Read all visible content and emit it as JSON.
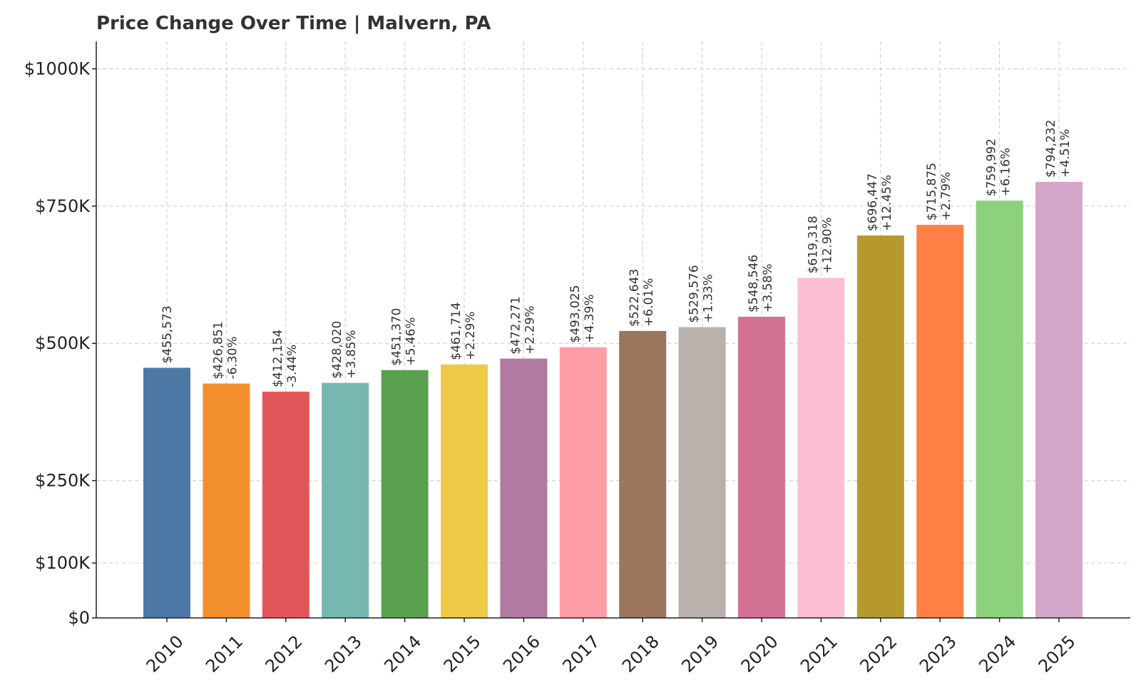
{
  "chart_data": {
    "type": "bar",
    "title": "Price Change Over Time | Malvern, PA",
    "xlabel": "",
    "ylabel": "",
    "categories": [
      "2010",
      "2011",
      "2012",
      "2013",
      "2014",
      "2015",
      "2016",
      "2017",
      "2018",
      "2019",
      "2020",
      "2021",
      "2022",
      "2023",
      "2024",
      "2025"
    ],
    "values": [
      455573,
      426851,
      412154,
      428020,
      451370,
      461714,
      472271,
      493025,
      522643,
      529576,
      548546,
      619318,
      696447,
      715875,
      759992,
      794232
    ],
    "value_labels": [
      "$455,573",
      "$426,851",
      "$412,154",
      "$428,020",
      "$451,370",
      "$461,714",
      "$472,271",
      "$493,025",
      "$522,643",
      "$529,576",
      "$548,546",
      "$619,318",
      "$696,447",
      "$715,875",
      "$759,992",
      "$794,232"
    ],
    "change_labels": [
      "",
      "-6.30%",
      "-3.44%",
      "+3.85%",
      "+5.46%",
      "+2.29%",
      "+2.29%",
      "+4.39%",
      "+6.01%",
      "+1.33%",
      "+3.58%",
      "+12.90%",
      "+12.45%",
      "+2.79%",
      "+6.16%",
      "+4.51%"
    ],
    "colors": [
      "#4e79a7",
      "#f28e2b",
      "#e15759",
      "#76b7b2",
      "#59a14f",
      "#edc948",
      "#b07aa1",
      "#ff9da7",
      "#9c755f",
      "#bab0ac",
      "#d37295",
      "#fabfd2",
      "#b6992d",
      "#ff7f45",
      "#8cd17d",
      "#d4a6c8"
    ],
    "yticks": [
      0,
      100000,
      250000,
      500000,
      750000,
      1000000
    ],
    "ytick_labels": [
      "$0",
      "$100K",
      "$250K",
      "$500K",
      "$750K",
      "$1000K"
    ],
    "ylim": [
      0,
      1050000
    ],
    "grid": true,
    "legend": "none"
  }
}
